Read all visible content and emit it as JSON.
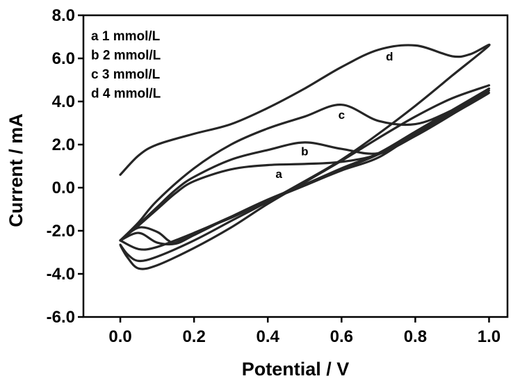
{
  "chart_data": {
    "type": "line",
    "title": "",
    "xlabel": "Potential / V",
    "ylabel": "Current / mA",
    "xlim": [
      -0.1,
      1.05
    ],
    "ylim": [
      -6.0,
      8.0
    ],
    "x_ticks": [
      "0.0",
      "0.2",
      "0.4",
      "0.6",
      "0.8",
      "1.0"
    ],
    "y_ticks": [
      "-6.0",
      "-4.0",
      "-2.0",
      "0.0",
      "2.0",
      "4.0",
      "6.0",
      "8.0"
    ],
    "x_tick_values": [
      0.0,
      0.2,
      0.4,
      0.6,
      0.8,
      1.0
    ],
    "y_tick_values": [
      -6.0,
      -4.0,
      -2.0,
      0.0,
      2.0,
      4.0,
      6.0,
      8.0
    ],
    "grid": false,
    "legend_position": "top-left",
    "legend": [
      "a 1 mmol/L",
      "b 2 mmol/L",
      "c 3 mmol/L",
      "d 4 mmol/L"
    ],
    "series": [
      {
        "name": "a 1 mmol/L",
        "label": "a",
        "label_at": [
          0.43,
          0.45
        ],
        "x": [
          0.0,
          0.05,
          0.1,
          0.15,
          0.2,
          0.3,
          0.4,
          0.5,
          0.6,
          0.7,
          0.8,
          0.9,
          1.0,
          0.9,
          0.8,
          0.7,
          0.6,
          0.5,
          0.4,
          0.3,
          0.2,
          0.1,
          0.05,
          0.0
        ],
        "y": [
          -2.45,
          -1.75,
          -1.0,
          -0.25,
          0.3,
          0.85,
          1.05,
          1.1,
          1.2,
          1.55,
          2.4,
          3.4,
          4.4,
          3.5,
          2.5,
          1.4,
          0.8,
          0.1,
          -0.6,
          -1.35,
          -2.1,
          -2.75,
          -2.85,
          -2.45
        ]
      },
      {
        "name": "b 2 mmol/L",
        "label": "b",
        "label_at": [
          0.5,
          1.5
        ],
        "x": [
          0.0,
          0.05,
          0.1,
          0.15,
          0.2,
          0.3,
          0.4,
          0.5,
          0.6,
          0.7,
          0.8,
          0.9,
          1.0,
          0.9,
          0.8,
          0.7,
          0.6,
          0.5,
          0.4,
          0.3,
          0.2,
          0.15,
          0.13,
          0.1,
          0.05,
          0.0
        ],
        "y": [
          -2.45,
          -1.7,
          -0.9,
          -0.1,
          0.5,
          1.3,
          1.75,
          2.1,
          1.8,
          1.6,
          2.4,
          3.4,
          4.5,
          3.55,
          2.55,
          1.55,
          0.85,
          0.1,
          -0.6,
          -1.4,
          -2.1,
          -2.55,
          -2.45,
          -2.05,
          -1.85,
          -2.45
        ]
      },
      {
        "name": "c 3 mmol/L",
        "label": "c",
        "label_at": [
          0.6,
          3.2
        ],
        "x": [
          0.0,
          0.05,
          0.1,
          0.2,
          0.3,
          0.4,
          0.5,
          0.6,
          0.7,
          0.8,
          0.9,
          1.0,
          0.9,
          0.8,
          0.7,
          0.6,
          0.5,
          0.4,
          0.3,
          0.2,
          0.15,
          0.1,
          0.05,
          0.0
        ],
        "y": [
          -2.45,
          -1.6,
          -0.6,
          0.9,
          2.0,
          2.75,
          3.3,
          3.85,
          3.1,
          2.95,
          3.6,
          4.6,
          3.6,
          2.6,
          1.6,
          0.9,
          0.15,
          -0.55,
          -1.35,
          -2.2,
          -2.6,
          -2.55,
          -2.1,
          -2.45
        ]
      },
      {
        "name": "d 4 mmol/L",
        "label": "d",
        "label_at": [
          0.73,
          5.9
        ],
        "x": [
          0.0,
          0.05,
          0.1,
          0.2,
          0.3,
          0.4,
          0.5,
          0.6,
          0.7,
          0.8,
          0.9,
          0.95,
          1.0,
          0.9,
          0.8,
          0.7,
          0.6,
          0.5,
          0.4,
          0.3,
          0.2,
          0.1,
          0.05,
          0.02,
          0.0,
          0.02,
          0.05,
          0.1,
          0.2,
          0.3,
          0.4,
          0.5,
          0.6,
          0.7,
          0.8,
          0.9,
          1.0
        ],
        "y": [
          0.6,
          1.5,
          2.0,
          2.5,
          2.95,
          3.7,
          4.6,
          5.6,
          6.4,
          6.6,
          6.1,
          6.2,
          6.6,
          5.2,
          3.8,
          2.5,
          1.3,
          0.3,
          -0.65,
          -1.55,
          -2.45,
          -3.2,
          -3.4,
          -3.1,
          -2.65,
          -3.25,
          -3.75,
          -3.6,
          -2.8,
          -1.85,
          -0.75,
          0.25,
          1.25,
          2.3,
          3.3,
          4.15,
          4.75
        ]
      }
    ]
  }
}
